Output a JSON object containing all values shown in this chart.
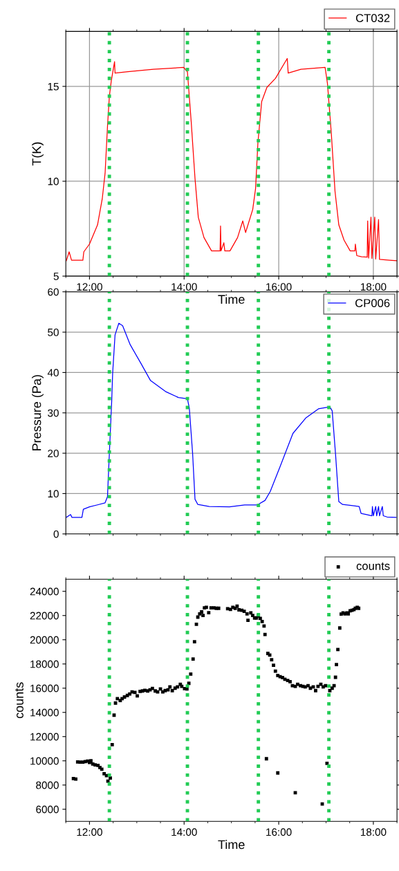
{
  "chart_data": [
    {
      "type": "line",
      "xlabel": "Time",
      "ylabel": "T(K)",
      "legend": "top right",
      "grid": true,
      "marker": "none",
      "line_style": "solid",
      "xlim": [
        11.5,
        18.5
      ],
      "ylim": [
        5,
        17.9
      ],
      "yticks": [
        5,
        10,
        15
      ],
      "xticks": [
        {
          "value": 11.5,
          "label": null
        },
        {
          "value": 12,
          "label": "12:00"
        },
        {
          "value": 12.5,
          "label": null
        },
        {
          "value": 13,
          "label": null
        },
        {
          "value": 13.5,
          "label": null
        },
        {
          "value": 14,
          "label": "14:00"
        },
        {
          "value": 14.5,
          "label": null
        },
        {
          "value": 15,
          "label": null
        },
        {
          "value": 15.5,
          "label": null
        },
        {
          "value": 16,
          "label": "16:00"
        },
        {
          "value": 16.5,
          "label": null
        },
        {
          "value": 17,
          "label": null
        },
        {
          "value": 17.5,
          "label": null
        },
        {
          "value": 18,
          "label": "18:00"
        },
        {
          "value": 18.5,
          "label": null
        }
      ],
      "ref_lines": [
        {
          "axis": "x",
          "value": 12.42,
          "color": "#22cc55",
          "line_style": "dotted"
        },
        {
          "axis": "x",
          "value": 14.07,
          "color": "#22cc55",
          "line_style": "dotted"
        },
        {
          "axis": "x",
          "value": 15.57,
          "color": "#22cc55",
          "line_style": "dotted"
        },
        {
          "axis": "x",
          "value": 17.06,
          "color": "#22cc55",
          "line_style": "dotted"
        }
      ],
      "series": [
        {
          "name": "CT032",
          "color": "#ff0000",
          "x": [
            11.51,
            11.57,
            11.62,
            11.86,
            11.88,
            12.0,
            12.17,
            12.27,
            12.33,
            12.38,
            12.42,
            12.46,
            12.53,
            12.54,
            12.81,
            13.35,
            13.99,
            14.07,
            14.15,
            14.23,
            14.3,
            14.42,
            14.58,
            14.76,
            14.77,
            14.78,
            14.84,
            14.86,
            14.97,
            15.13,
            15.24,
            15.3,
            15.45,
            15.51,
            15.56,
            15.64,
            15.75,
            15.93,
            16.18,
            16.2,
            16.47,
            16.98,
            17.03,
            17.11,
            17.19,
            17.27,
            17.38,
            17.51,
            17.61,
            17.62,
            17.65,
            17.75,
            17.87,
            17.88,
            17.9,
            17.95,
            17.97,
            18.03,
            18.05,
            18.11,
            18.13,
            18.34,
            18.49
          ],
          "values": [
            5.81,
            6.28,
            5.84,
            5.84,
            6.28,
            6.69,
            7.7,
            9.08,
            10.43,
            12.86,
            14.47,
            15.28,
            16.3,
            15.7,
            15.77,
            15.9,
            16.0,
            15.77,
            13.13,
            10.16,
            8.1,
            7.03,
            6.33,
            6.33,
            7.64,
            6.33,
            6.76,
            6.33,
            6.33,
            7.03,
            7.91,
            7.3,
            8.51,
            9.6,
            12.03,
            14.2,
            14.95,
            15.42,
            16.47,
            15.7,
            15.9,
            16.0,
            15.15,
            12.58,
            9.46,
            7.7,
            6.9,
            6.33,
            6.33,
            6.69,
            6.08,
            6.02,
            6.0,
            7.91,
            5.95,
            8.11,
            5.93,
            8.11,
            5.9,
            7.98,
            5.88,
            5.84,
            5.81
          ]
        }
      ]
    },
    {
      "type": "line",
      "ylabel": "Pressure (Pa)",
      "legend": "top right",
      "grid": true,
      "marker": "none",
      "line_style": "solid",
      "tick_labels": "y",
      "xlim": [
        11.5,
        18.5
      ],
      "ylim": [
        0,
        60
      ],
      "yticks": [
        0,
        10,
        20,
        30,
        40,
        50,
        60
      ],
      "xticks": [
        {
          "value": 11.5,
          "label": null
        },
        {
          "value": 12,
          "label": null
        },
        {
          "value": 12.5,
          "label": null
        },
        {
          "value": 13,
          "label": null
        },
        {
          "value": 13.5,
          "label": null
        },
        {
          "value": 14,
          "label": null
        },
        {
          "value": 14.5,
          "label": null
        },
        {
          "value": 15,
          "label": null
        },
        {
          "value": 15.5,
          "label": null
        },
        {
          "value": 16,
          "label": null
        },
        {
          "value": 16.5,
          "label": null
        },
        {
          "value": 17,
          "label": null
        },
        {
          "value": 17.5,
          "label": null
        },
        {
          "value": 18,
          "label": null
        },
        {
          "value": 18.5,
          "label": null
        }
      ],
      "ref_lines": [
        {
          "axis": "x",
          "value": 12.42,
          "color": "#22cc55",
          "line_style": "dotted"
        },
        {
          "axis": "x",
          "value": 14.07,
          "color": "#22cc55",
          "line_style": "dotted"
        },
        {
          "axis": "x",
          "value": 15.57,
          "color": "#22cc55",
          "line_style": "dotted"
        },
        {
          "axis": "x",
          "value": 17.06,
          "color": "#22cc55",
          "line_style": "dotted"
        }
      ],
      "series": [
        {
          "name": "CP006",
          "color": "#0000ff",
          "x": [
            11.51,
            11.6,
            11.63,
            11.84,
            11.87,
            12.0,
            12.17,
            12.33,
            12.38,
            12.42,
            12.47,
            12.49,
            12.54,
            12.62,
            12.7,
            12.86,
            13.08,
            13.29,
            13.62,
            13.88,
            14.07,
            14.11,
            14.18,
            14.23,
            14.29,
            14.53,
            14.96,
            15.28,
            15.55,
            15.71,
            15.82,
            16.03,
            16.3,
            16.57,
            16.84,
            17.08,
            17.13,
            17.2,
            17.27,
            17.35,
            17.7,
            17.74,
            17.86,
            17.97,
            17.98,
            18.0,
            18.05,
            18.07,
            18.11,
            18.13,
            18.19,
            18.21,
            18.29,
            18.48
          ],
          "values": [
            4.1,
            4.8,
            4.1,
            4.1,
            6.1,
            6.7,
            7.2,
            7.7,
            9.2,
            19.9,
            33.0,
            39.9,
            49.3,
            52.2,
            51.6,
            46.9,
            42.4,
            38.0,
            35.2,
            33.8,
            33.5,
            31.2,
            19.9,
            8.6,
            7.3,
            6.8,
            6.7,
            7.2,
            7.2,
            8.3,
            10.5,
            16.7,
            24.9,
            28.7,
            31.0,
            31.5,
            30.5,
            19.9,
            8.0,
            7.3,
            6.8,
            5.1,
            4.8,
            4.5,
            6.8,
            4.5,
            6.8,
            4.5,
            6.8,
            4.5,
            6.8,
            4.5,
            4.2,
            4.1
          ]
        }
      ]
    },
    {
      "type": "scatter",
      "xlabel": "Time",
      "ylabel": "counts",
      "legend": "top right",
      "grid": false,
      "marker": "square",
      "xlim": [
        11.5,
        18.5
      ],
      "ylim": [
        5000,
        25000
      ],
      "yticks": [
        6000,
        8000,
        10000,
        12000,
        14000,
        16000,
        18000,
        20000,
        22000,
        24000
      ],
      "xticks": [
        {
          "value": 11.5,
          "label": null
        },
        {
          "value": 12,
          "label": "12:00"
        },
        {
          "value": 12.5,
          "label": null
        },
        {
          "value": 13,
          "label": null
        },
        {
          "value": 13.5,
          "label": null
        },
        {
          "value": 14,
          "label": "14:00"
        },
        {
          "value": 14.5,
          "label": null
        },
        {
          "value": 15,
          "label": null
        },
        {
          "value": 15.5,
          "label": null
        },
        {
          "value": 16,
          "label": "16:00"
        },
        {
          "value": 16.5,
          "label": null
        },
        {
          "value": 17,
          "label": null
        },
        {
          "value": 17.5,
          "label": null
        },
        {
          "value": 18,
          "label": "18:00"
        },
        {
          "value": 18.5,
          "label": null
        }
      ],
      "ref_lines": [
        {
          "axis": "x",
          "value": 12.42,
          "color": "#22cc55",
          "line_style": "dotted"
        },
        {
          "axis": "x",
          "value": 14.07,
          "color": "#22cc55",
          "line_style": "dotted"
        },
        {
          "axis": "x",
          "value": 15.57,
          "color": "#22cc55",
          "line_style": "dotted"
        },
        {
          "axis": "x",
          "value": 17.06,
          "color": "#22cc55",
          "line_style": "dotted"
        }
      ],
      "series": [
        {
          "name": "counts",
          "color": "#000000",
          "x": [
            11.66,
            11.71,
            11.75,
            11.8,
            11.86,
            11.91,
            11.96,
            12.0,
            12.03,
            12.07,
            12.12,
            12.18,
            12.22,
            12.26,
            12.31,
            12.36,
            12.39,
            12.44,
            12.48,
            12.52,
            12.55,
            12.59,
            12.65,
            12.69,
            12.74,
            12.8,
            12.85,
            12.9,
            12.96,
            13.01,
            13.07,
            13.12,
            13.17,
            13.23,
            13.28,
            13.33,
            13.39,
            13.44,
            13.5,
            13.55,
            13.6,
            13.66,
            13.7,
            13.75,
            13.81,
            13.86,
            13.92,
            13.95,
            14.01,
            14.06,
            14.1,
            14.14,
            14.19,
            14.22,
            14.26,
            14.29,
            14.33,
            14.37,
            14.4,
            14.43,
            14.47,
            14.52,
            14.57,
            14.63,
            14.68,
            14.73,
            14.92,
            14.98,
            15.03,
            15.08,
            15.12,
            15.16,
            15.22,
            15.27,
            15.33,
            15.35,
            15.41,
            15.45,
            15.49,
            15.53,
            15.57,
            15.61,
            15.65,
            15.69,
            15.71,
            15.74,
            15.77,
            15.81,
            15.85,
            15.89,
            15.93,
            15.98,
            15.98,
            16.03,
            16.08,
            16.13,
            16.19,
            16.24,
            16.29,
            16.35,
            16.35,
            16.4,
            16.46,
            16.51,
            16.56,
            16.62,
            16.67,
            16.73,
            16.78,
            16.83,
            16.89,
            16.92,
            16.94,
            16.99,
            17.02,
            17.08,
            17.13,
            17.17,
            17.2,
            17.22,
            17.25,
            17.29,
            17.32,
            17.36,
            17.4,
            17.44,
            17.47,
            17.51,
            17.55,
            17.59,
            17.62,
            17.66,
            17.69
          ],
          "values": [
            8530,
            8490,
            9910,
            9890,
            9890,
            9940,
            9980,
            9870,
            10000,
            9730,
            9660,
            9620,
            9450,
            9310,
            8930,
            8780,
            8320,
            8580,
            11340,
            13770,
            14770,
            15130,
            14980,
            15130,
            15270,
            15400,
            15520,
            15690,
            15650,
            15360,
            15730,
            15770,
            15820,
            15770,
            15860,
            15980,
            15770,
            15690,
            15940,
            15690,
            15800,
            15860,
            16110,
            15800,
            16000,
            16110,
            16320,
            16150,
            15960,
            15940,
            16400,
            17160,
            18410,
            19840,
            21280,
            21870,
            22140,
            22300,
            22010,
            22640,
            22680,
            22240,
            22640,
            22640,
            22600,
            22600,
            22560,
            22510,
            22680,
            22600,
            22770,
            22470,
            22430,
            22350,
            22140,
            21610,
            22220,
            22010,
            21800,
            21800,
            21970,
            21760,
            21510,
            21130,
            20440,
            10170,
            18870,
            18730,
            18350,
            17890,
            17410,
            17050,
            9000,
            16950,
            16880,
            16740,
            16630,
            16530,
            16210,
            16150,
            7360,
            16320,
            16210,
            16150,
            16110,
            16210,
            16000,
            16110,
            15800,
            16150,
            16320,
            6440,
            16110,
            16210,
            9790,
            15800,
            16000,
            16210,
            16900,
            17950,
            19190,
            20970,
            22120,
            22220,
            22140,
            22220,
            22140,
            22390,
            22430,
            22490,
            22600,
            22680,
            22600
          ]
        }
      ]
    }
  ]
}
